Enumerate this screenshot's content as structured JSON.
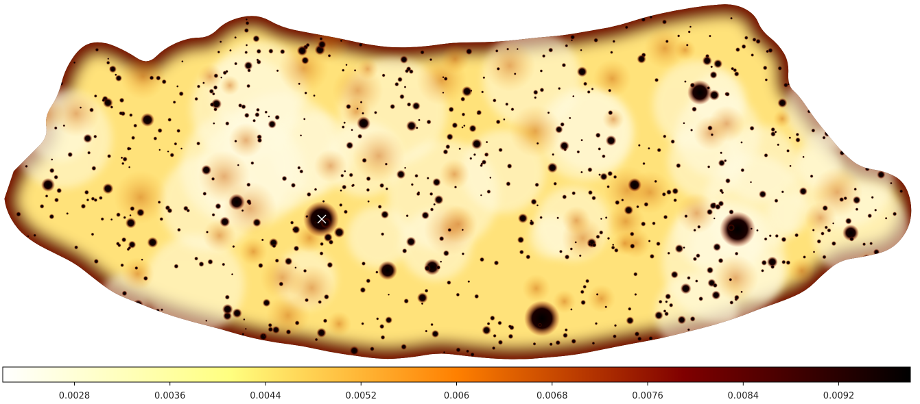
{
  "chart_data": {
    "type": "heatmap",
    "projection": "mollweide-like sky map",
    "colormap": "afmhot_r",
    "value_range": [
      0.0022,
      0.0098
    ],
    "colorbar": {
      "orientation": "horizontal",
      "placement": "bottom",
      "ticks": [
        0.0028,
        0.0036,
        0.0044,
        0.0052,
        0.006,
        0.0068,
        0.0076,
        0.0084,
        0.0092
      ],
      "tick_labels": [
        "0.0028",
        "0.0036",
        "0.0044",
        "0.0052",
        "0.006",
        "0.0068",
        "0.0076",
        "0.0084",
        "0.0092"
      ]
    },
    "marker": {
      "symbol": "x",
      "color": "#ffffff"
    }
  }
}
